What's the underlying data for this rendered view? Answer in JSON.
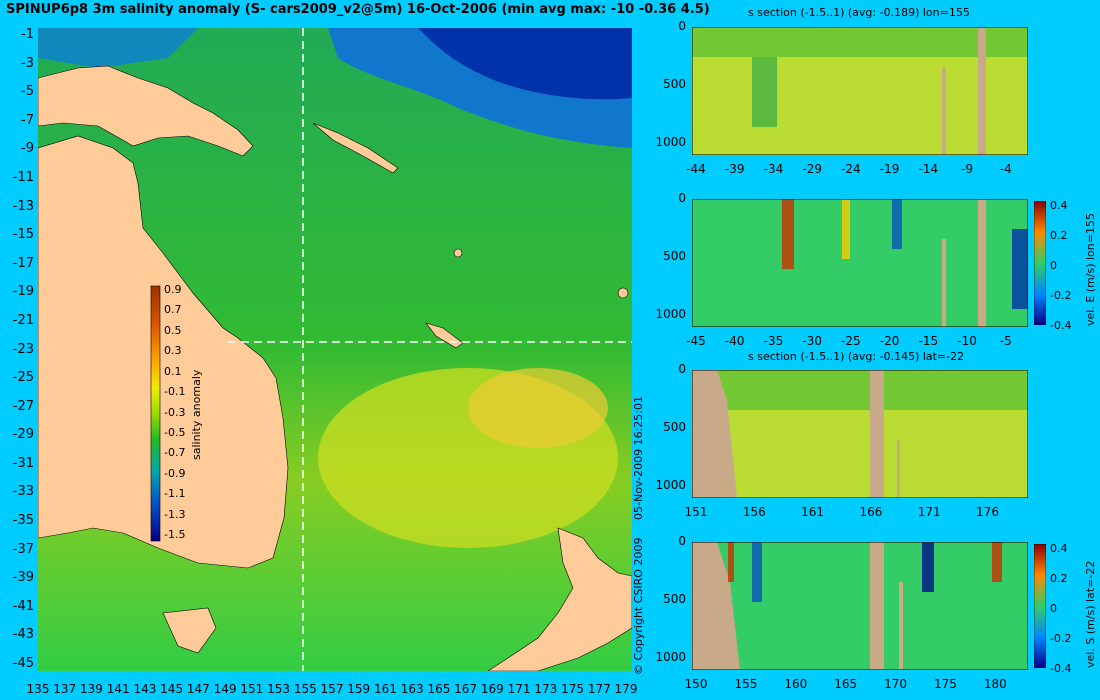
{
  "title": "SPINUP6p8 3m salinity anomaly (S- cars2009_v2@5m) 16-Oct-2006 (min avg max: -10 -0.36 4.5)",
  "map": {
    "lat_ticks": [
      "-1",
      "-3",
      "-5",
      "-7",
      "-9",
      "-11",
      "-13",
      "-15",
      "-17",
      "-19",
      "-21",
      "-23",
      "-25",
      "-27",
      "-29",
      "-31",
      "-33",
      "-35",
      "-37",
      "-39",
      "-41",
      "-43",
      "-45"
    ],
    "lon_ticks": [
      "135",
      "137",
      "139",
      "141",
      "143",
      "145",
      "147",
      "149",
      "151",
      "153",
      "155",
      "157",
      "159",
      "161",
      "163",
      "165",
      "167",
      "169",
      "171",
      "173",
      "175",
      "177",
      "179"
    ],
    "section_lon": 155,
    "section_lat": -22,
    "colorbar": {
      "label": "salinity anomaly",
      "ticks": [
        "0.9",
        "0.7",
        "0.5",
        "0.3",
        "0.1",
        "-0.1",
        "-0.3",
        "-0.5",
        "-0.7",
        "-0.9",
        "-1.1",
        "-1.3",
        "-1.5"
      ]
    }
  },
  "panels": {
    "p1": {
      "title": "s section (-1.5..1) (avg: -0.189) lon=155",
      "yticks": [
        "0",
        "500",
        "1000"
      ],
      "xticks": [
        "-44",
        "-39",
        "-34",
        "-29",
        "-24",
        "-19",
        "-14",
        "-9",
        "-4"
      ]
    },
    "p2": {
      "yticks": [
        "0",
        "500",
        "1000"
      ],
      "xticks": [
        "-45",
        "-40",
        "-35",
        "-30",
        "-25",
        "-20",
        "-15",
        "-10",
        "-5"
      ],
      "cb_ticks": [
        "0.4",
        "0.2",
        "0",
        "-0.2",
        "-0.4"
      ],
      "cb_label": "vel. E (m/s) lon=155"
    },
    "p3": {
      "title": "s section (-1.5..1) (avg: -0.145) lat=-22",
      "yticks": [
        "0",
        "500",
        "1000"
      ],
      "xticks": [
        "151",
        "156",
        "161",
        "166",
        "171",
        "176"
      ]
    },
    "p4": {
      "yticks": [
        "0",
        "500",
        "1000"
      ],
      "xticks": [
        "150",
        "155",
        "160",
        "165",
        "170",
        "175",
        "180"
      ],
      "cb_ticks": [
        "0.4",
        "0.2",
        "0",
        "-0.2",
        "-0.4"
      ],
      "cb_label": "vel. S (m/s) lat=-22"
    }
  },
  "timestamp": "05-Nov-2009 16:25:01",
  "copyright": "© Copyright CSIRO 2009",
  "colors": {
    "background": "#00ccff",
    "land": "#ffcc99",
    "section_land": "#c8aa88"
  }
}
